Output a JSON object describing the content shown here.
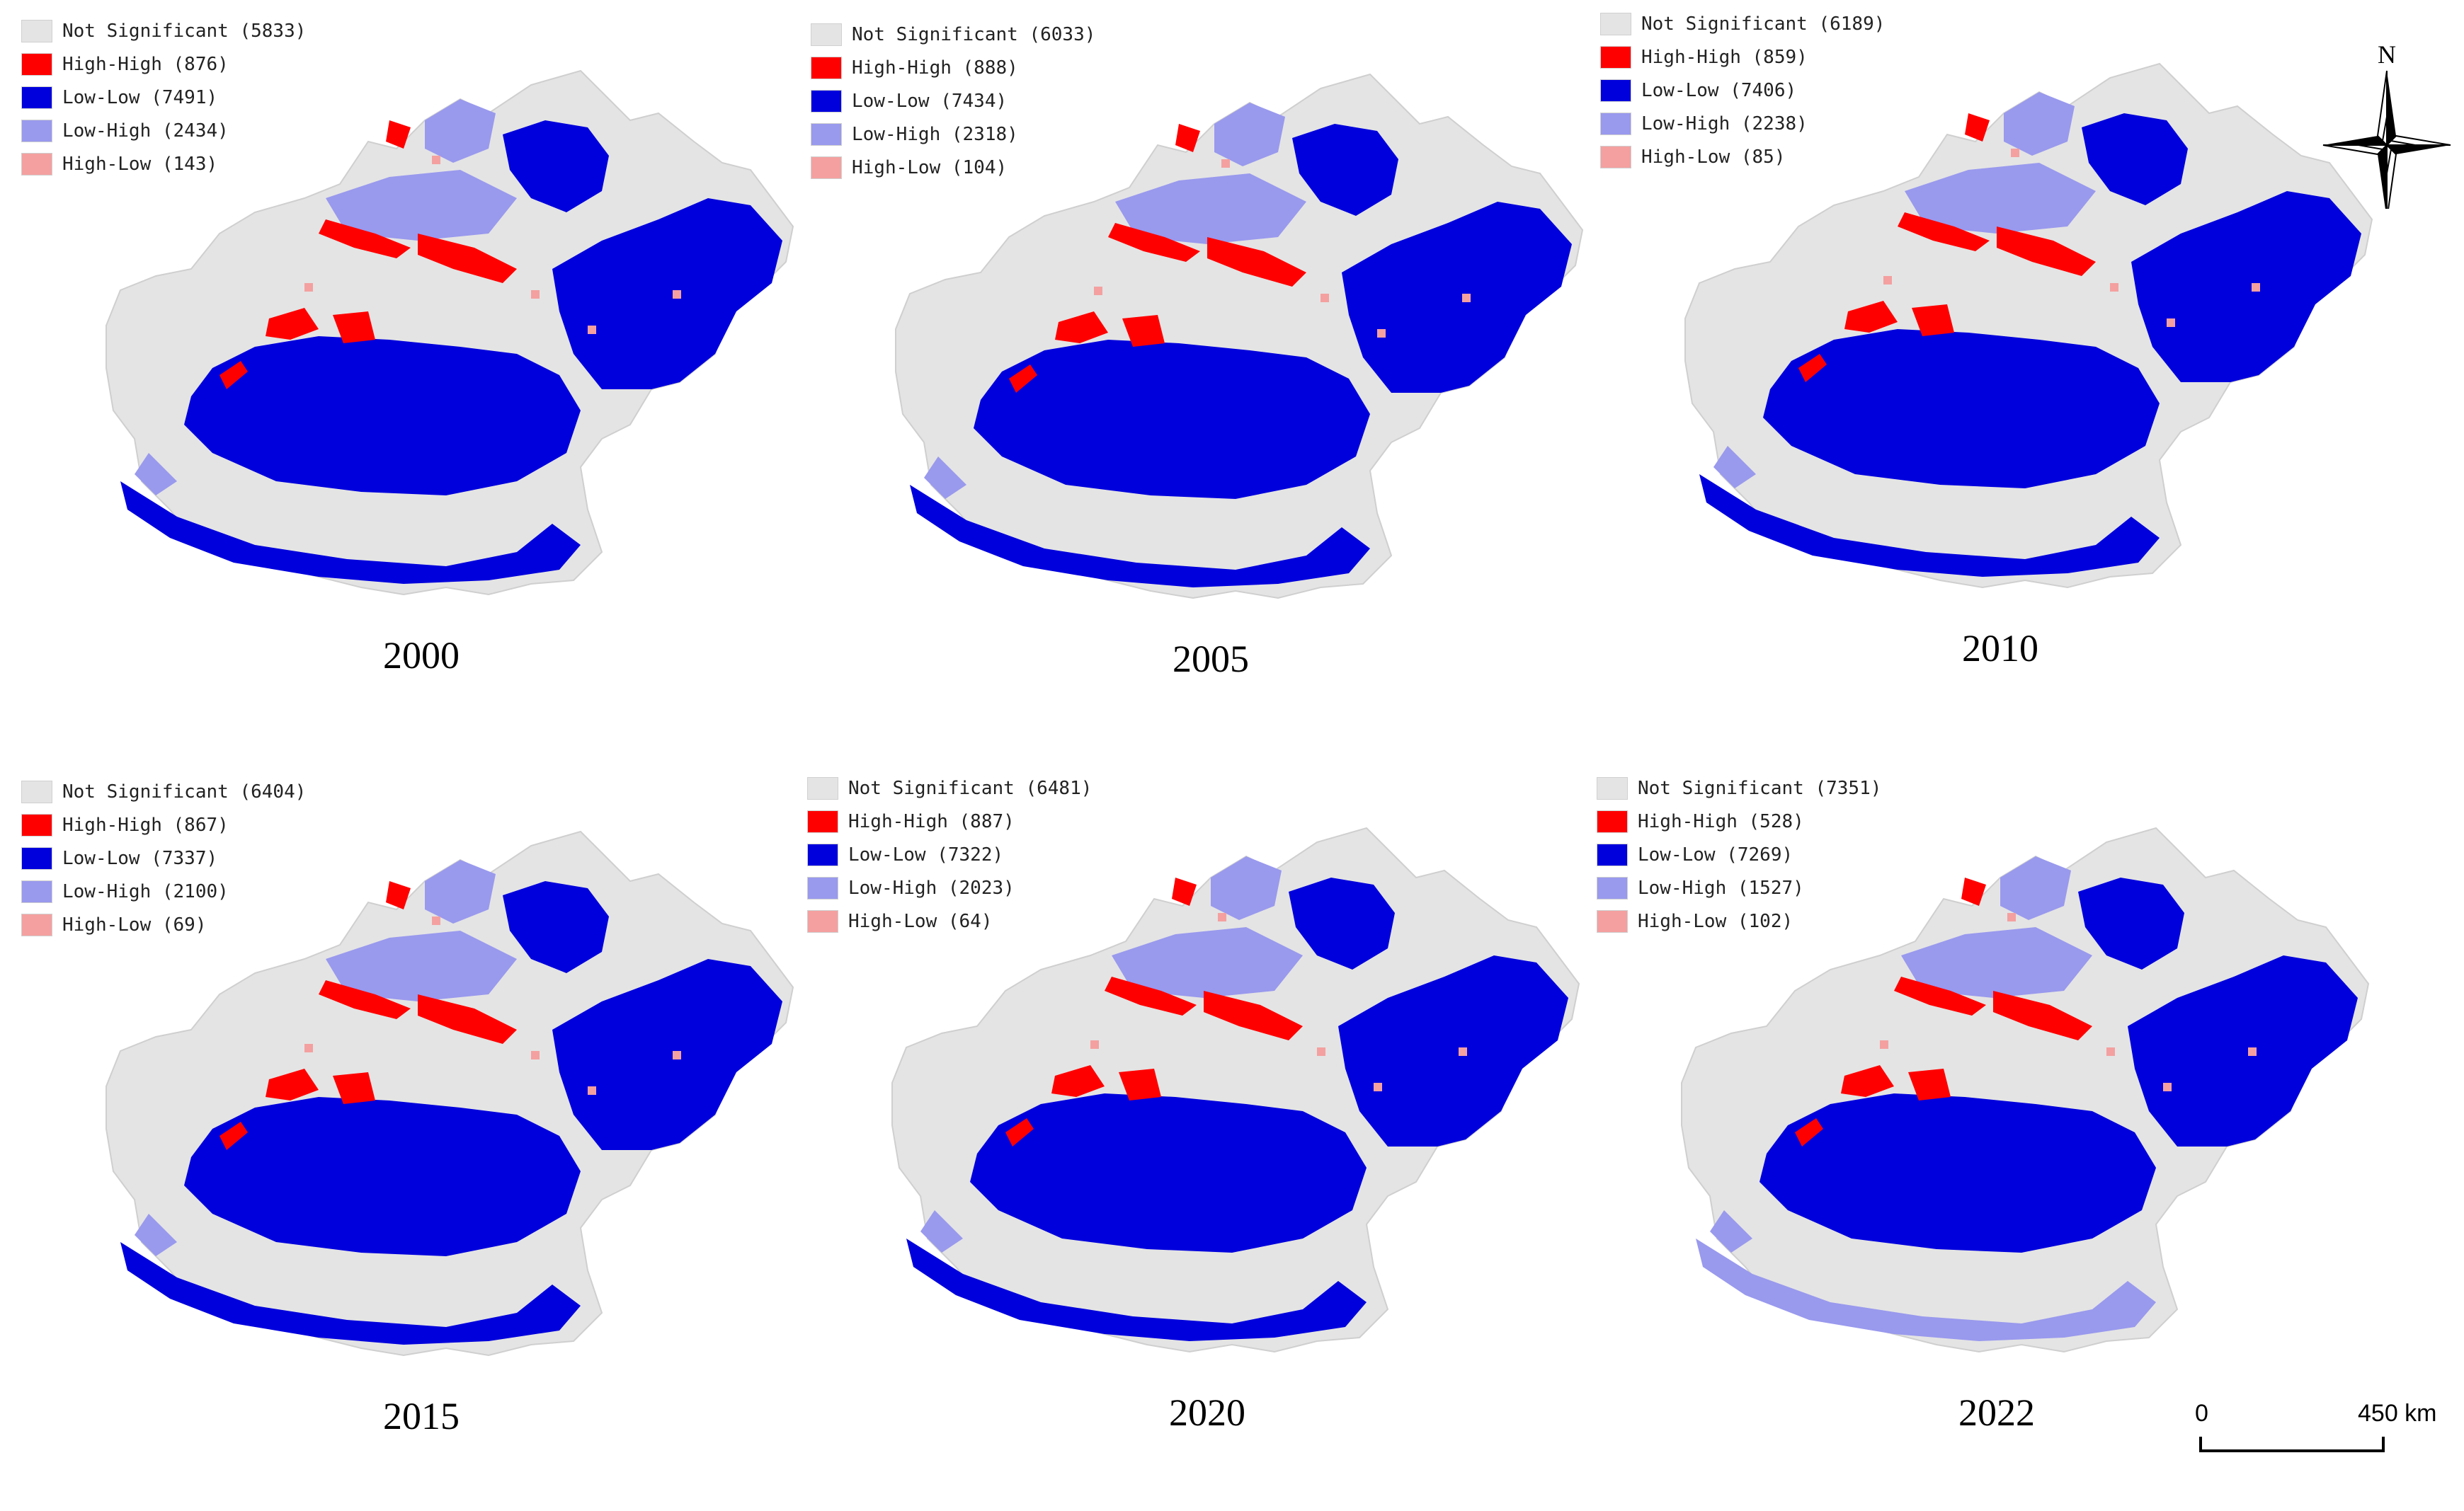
{
  "colors": {
    "not_significant": "#e4e4e4",
    "high_high": "#ff0000",
    "low_low": "#0000dd",
    "low_high": "#9999ee",
    "high_low": "#f4a0a0"
  },
  "panels": [
    {
      "year": "2000",
      "legend": [
        "Not Significant (5833)",
        "High-High (876)",
        "Low-Low (7491)",
        "Low-High (2434)",
        "High-Low (143)"
      ]
    },
    {
      "year": "2005",
      "legend": [
        "Not Significant (6033)",
        "High-High (888)",
        "Low-Low (7434)",
        "Low-High (2318)",
        "High-Low (104)"
      ]
    },
    {
      "year": "2010",
      "legend": [
        "Not Significant (6189)",
        "High-High (859)",
        "Low-Low (7406)",
        "Low-High (2238)",
        "High-Low (85)"
      ]
    },
    {
      "year": "2015",
      "legend": [
        "Not Significant (6404)",
        "High-High (867)",
        "Low-Low (7337)",
        "Low-High (2100)",
        "High-Low (69)"
      ]
    },
    {
      "year": "2020",
      "legend": [
        "Not Significant (6481)",
        "High-High (887)",
        "Low-Low (7322)",
        "Low-High (2023)",
        "High-Low (64)"
      ]
    },
    {
      "year": "2022",
      "legend": [
        "Not Significant (7351)",
        "High-High (528)",
        "Low-Low (7269)",
        "Low-High (1527)",
        "High-Low (102)"
      ]
    }
  ],
  "north_arrow": {
    "label": "N"
  },
  "scale_bar": {
    "start": "0",
    "end": "450 km"
  }
}
